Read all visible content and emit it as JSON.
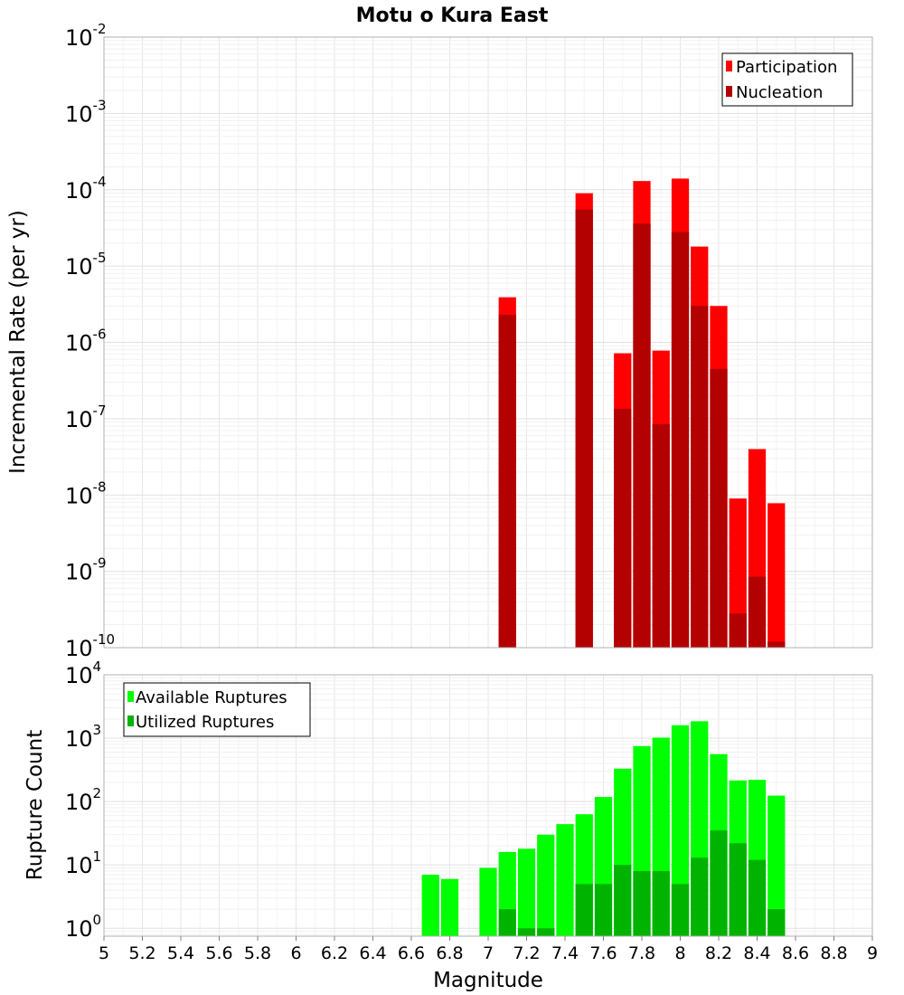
{
  "title": "Motu o Kura East",
  "chart_data": [
    {
      "type": "bar",
      "panel": "top",
      "ylabel": "Incremental Rate (per yr)",
      "yscale": "log",
      "ylim": [
        1e-10,
        0.01
      ],
      "xlim": [
        5,
        9
      ],
      "grid": true,
      "legend_position": "top-right",
      "colors": {
        "Participation": "#ff0000",
        "Nucleation": "#b30000"
      },
      "series": [
        {
          "name": "Participation",
          "x": [
            7.1,
            7.5,
            7.7,
            7.8,
            7.9,
            8.0,
            8.1,
            8.2,
            8.3,
            8.4,
            8.5
          ],
          "values": [
            3.9e-06,
            9e-05,
            7.2e-07,
            0.00013,
            7.8e-07,
            0.00014,
            1.8e-05,
            3e-06,
            9e-09,
            4e-08,
            7.8e-09
          ]
        },
        {
          "name": "Nucleation",
          "x": [
            7.1,
            7.5,
            7.7,
            7.8,
            7.9,
            8.0,
            8.1,
            8.2,
            8.3,
            8.4,
            8.5
          ],
          "values": [
            2.3e-06,
            5.5e-05,
            1.35e-07,
            3.6e-05,
            8.5e-08,
            2.8e-05,
            3e-06,
            4.5e-07,
            2.8e-10,
            8.5e-10,
            1.2e-10
          ]
        }
      ]
    },
    {
      "type": "bar",
      "panel": "bottom",
      "xlabel": "Magnitude",
      "ylabel": "Rupture Count",
      "yscale": "log",
      "ylim": [
        0.75,
        10000
      ],
      "xlim": [
        5,
        9
      ],
      "grid": true,
      "legend_position": "top-left",
      "colors": {
        "Available Ruptures": "#00ff00",
        "Utilized Ruptures": "#00b300"
      },
      "xticks": [
        "5",
        "5.2",
        "5.4",
        "5.6",
        "5.8",
        "6",
        "6.2",
        "6.4",
        "6.6",
        "6.8",
        "7",
        "7.2",
        "7.4",
        "7.6",
        "7.8",
        "8",
        "8.2",
        "8.4",
        "8.6",
        "8.8",
        "9"
      ],
      "series": [
        {
          "name": "Available Ruptures",
          "x": [
            6.7,
            6.8,
            7.0,
            7.1,
            7.2,
            7.3,
            7.4,
            7.5,
            7.6,
            7.7,
            7.8,
            7.9,
            8.0,
            8.1,
            8.2,
            8.3,
            8.4,
            8.5
          ],
          "values": [
            7,
            6,
            9,
            16,
            18,
            30,
            44,
            63,
            118,
            330,
            750,
            1020,
            1600,
            1850,
            560,
            215,
            220,
            124
          ]
        },
        {
          "name": "Utilized Ruptures",
          "x": [
            7.1,
            7.2,
            7.3,
            7.5,
            7.6,
            7.7,
            7.8,
            7.9,
            8.0,
            8.1,
            8.2,
            8.3,
            8.4,
            8.5
          ],
          "values": [
            2,
            1,
            1,
            5,
            5,
            10,
            8,
            8,
            5,
            13,
            35,
            22,
            12,
            2
          ]
        }
      ]
    }
  ],
  "top_yticks": [
    {
      "base": "10",
      "exp": "-2",
      "value": 0.01
    },
    {
      "base": "10",
      "exp": "-3",
      "value": 0.001
    },
    {
      "base": "10",
      "exp": "-4",
      "value": 0.0001
    },
    {
      "base": "10",
      "exp": "-5",
      "value": 1e-05
    },
    {
      "base": "10",
      "exp": "-6",
      "value": 1e-06
    },
    {
      "base": "10",
      "exp": "-7",
      "value": 1e-07
    },
    {
      "base": "10",
      "exp": "-8",
      "value": 1e-08
    },
    {
      "base": "10",
      "exp": "-9",
      "value": 1e-09
    },
    {
      "base": "10",
      "exp": "-10",
      "value": 1e-10
    }
  ],
  "bottom_yticks": [
    {
      "base": "10",
      "exp": "4",
      "value": 10000.0
    },
    {
      "base": "10",
      "exp": "3",
      "value": 1000.0
    },
    {
      "base": "10",
      "exp": "2",
      "value": 100.0
    },
    {
      "base": "10",
      "exp": "1",
      "value": 10.0
    },
    {
      "base": "10",
      "exp": "0",
      "value": 1
    }
  ]
}
